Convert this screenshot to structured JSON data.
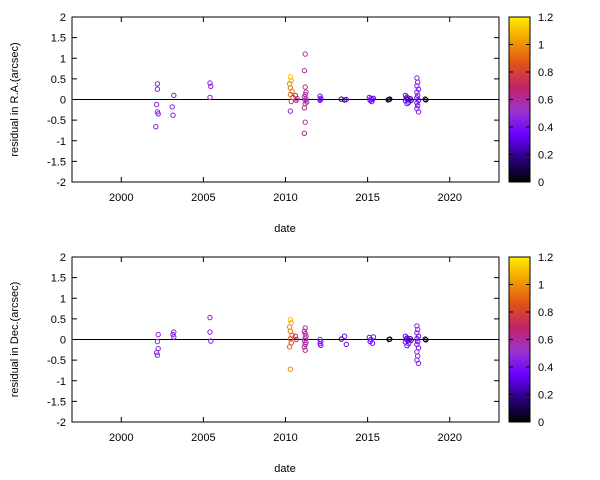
{
  "chart_data": [
    {
      "type": "scatter",
      "title": "",
      "xlabel": "date",
      "ylabel": "residual in R.A.(arcsec)",
      "xlim": [
        1997,
        2023
      ],
      "ylim": [
        -2,
        2
      ],
      "x_ticks": [
        "2000",
        "2005",
        "2010",
        "2015",
        "2020"
      ],
      "y_ticks": [
        "2",
        "1.5",
        "1",
        "0.5",
        "0",
        "-0.5",
        "-1",
        "-1.5",
        "-2"
      ],
      "color_by": "third value, 0 to 1.2",
      "zero_line": true,
      "points": [
        {
          "date": 2002.2,
          "residual": 0.38,
          "c": 0.45
        },
        {
          "date": 2002.2,
          "residual": 0.25,
          "c": 0.45
        },
        {
          "date": 2002.15,
          "residual": -0.12,
          "c": 0.45
        },
        {
          "date": 2002.2,
          "residual": -0.3,
          "c": 0.45
        },
        {
          "date": 2002.25,
          "residual": -0.35,
          "c": 0.45
        },
        {
          "date": 2002.1,
          "residual": -0.66,
          "c": 0.45
        },
        {
          "date": 2003.2,
          "residual": 0.1,
          "c": 0.45
        },
        {
          "date": 2003.1,
          "residual": -0.18,
          "c": 0.45
        },
        {
          "date": 2003.15,
          "residual": -0.38,
          "c": 0.45
        },
        {
          "date": 2005.4,
          "residual": 0.4,
          "c": 0.45
        },
        {
          "date": 2005.45,
          "residual": 0.32,
          "c": 0.45
        },
        {
          "date": 2005.4,
          "residual": 0.05,
          "c": 0.45
        },
        {
          "date": 2010.3,
          "residual": 0.55,
          "c": 1.1
        },
        {
          "date": 2010.35,
          "residual": 0.45,
          "c": 1.05
        },
        {
          "date": 2010.25,
          "residual": 0.38,
          "c": 1.0
        },
        {
          "date": 2010.3,
          "residual": 0.28,
          "c": 0.95
        },
        {
          "date": 2010.4,
          "residual": 0.2,
          "c": 1.0
        },
        {
          "date": 2010.3,
          "residual": 0.12,
          "c": 0.9
        },
        {
          "date": 2010.45,
          "residual": 0.05,
          "c": 0.85
        },
        {
          "date": 2010.35,
          "residual": -0.05,
          "c": 0.8
        },
        {
          "date": 2010.3,
          "residual": -0.28,
          "c": 0.45
        },
        {
          "date": 2010.6,
          "residual": 0.1,
          "c": 0.7
        },
        {
          "date": 2010.7,
          "residual": 0.02,
          "c": 0.65
        },
        {
          "date": 2010.65,
          "residual": -0.02,
          "c": 0.6
        },
        {
          "date": 2011.2,
          "residual": 1.1,
          "c": 0.6
        },
        {
          "date": 2011.15,
          "residual": 0.7,
          "c": 0.6
        },
        {
          "date": 2011.2,
          "residual": 0.3,
          "c": 0.6
        },
        {
          "date": 2011.25,
          "residual": 0.18,
          "c": 0.6
        },
        {
          "date": 2011.2,
          "residual": 0.12,
          "c": 0.58
        },
        {
          "date": 2011.15,
          "residual": 0.06,
          "c": 0.58
        },
        {
          "date": 2011.25,
          "residual": 0.02,
          "c": 0.58
        },
        {
          "date": 2011.2,
          "residual": -0.02,
          "c": 0.58
        },
        {
          "date": 2011.3,
          "residual": -0.06,
          "c": 0.58
        },
        {
          "date": 2011.2,
          "residual": -0.1,
          "c": 0.58
        },
        {
          "date": 2011.15,
          "residual": -0.2,
          "c": 0.6
        },
        {
          "date": 2011.2,
          "residual": -0.55,
          "c": 0.6
        },
        {
          "date": 2011.15,
          "residual": -0.82,
          "c": 0.6
        },
        {
          "date": 2012.1,
          "residual": 0.08,
          "c": 0.4
        },
        {
          "date": 2012.15,
          "residual": 0.03,
          "c": 0.4
        },
        {
          "date": 2012.1,
          "residual": -0.02,
          "c": 0.4
        },
        {
          "date": 2012.15,
          "residual": 0.0,
          "c": 0.4
        },
        {
          "date": 2013.4,
          "residual": 0.01,
          "c": 0.1
        },
        {
          "date": 2013.6,
          "residual": -0.01,
          "c": 0.1
        },
        {
          "date": 2013.7,
          "residual": 0.0,
          "c": 0.35
        },
        {
          "date": 2015.1,
          "residual": 0.05,
          "c": 0.35
        },
        {
          "date": 2015.2,
          "residual": 0.02,
          "c": 0.35
        },
        {
          "date": 2015.15,
          "residual": -0.02,
          "c": 0.35
        },
        {
          "date": 2015.3,
          "residual": 0.0,
          "c": 0.35
        },
        {
          "date": 2015.25,
          "residual": -0.05,
          "c": 0.35
        },
        {
          "date": 2015.35,
          "residual": 0.03,
          "c": 0.35
        },
        {
          "date": 2016.3,
          "residual": 0.0,
          "c": 0.05
        },
        {
          "date": 2016.35,
          "residual": 0.01,
          "c": 0.05
        },
        {
          "date": 2016.25,
          "residual": -0.01,
          "c": 0.05
        },
        {
          "date": 2017.3,
          "residual": 0.1,
          "c": 0.35
        },
        {
          "date": 2017.4,
          "residual": 0.06,
          "c": 0.35
        },
        {
          "date": 2017.35,
          "residual": 0.03,
          "c": 0.3
        },
        {
          "date": 2017.45,
          "residual": 0.0,
          "c": 0.3
        },
        {
          "date": 2017.3,
          "residual": -0.03,
          "c": 0.3
        },
        {
          "date": 2017.5,
          "residual": -0.07,
          "c": 0.35
        },
        {
          "date": 2017.4,
          "residual": -0.1,
          "c": 0.35
        },
        {
          "date": 2017.6,
          "residual": 0.02,
          "c": 0.2
        },
        {
          "date": 2017.65,
          "residual": -0.02,
          "c": 0.2
        },
        {
          "date": 2018.0,
          "residual": 0.52,
          "c": 0.45
        },
        {
          "date": 2018.05,
          "residual": 0.42,
          "c": 0.45
        },
        {
          "date": 2018.0,
          "residual": 0.33,
          "c": 0.45
        },
        {
          "date": 2018.1,
          "residual": 0.25,
          "c": 0.4
        },
        {
          "date": 2018.0,
          "residual": 0.18,
          "c": 0.4
        },
        {
          "date": 2018.05,
          "residual": 0.1,
          "c": 0.4
        },
        {
          "date": 2018.0,
          "residual": 0.04,
          "c": 0.35
        },
        {
          "date": 2018.1,
          "residual": -0.02,
          "c": 0.35
        },
        {
          "date": 2018.0,
          "residual": -0.08,
          "c": 0.35
        },
        {
          "date": 2018.05,
          "residual": -0.15,
          "c": 0.4
        },
        {
          "date": 2018.0,
          "residual": -0.22,
          "c": 0.4
        },
        {
          "date": 2018.1,
          "residual": -0.3,
          "c": 0.45
        },
        {
          "date": 2018.5,
          "residual": 0.01,
          "c": 0.05
        },
        {
          "date": 2018.55,
          "residual": -0.01,
          "c": 0.05
        }
      ]
    },
    {
      "type": "scatter",
      "title": "",
      "xlabel": "date",
      "ylabel": "residual in Dec.(arcsec)",
      "xlim": [
        1997,
        2023
      ],
      "ylim": [
        -2,
        2
      ],
      "x_ticks": [
        "2000",
        "2005",
        "2010",
        "2015",
        "2020"
      ],
      "y_ticks": [
        "2",
        "1.5",
        "1",
        "0.5",
        "0",
        "-0.5",
        "-1",
        "-1.5",
        "-2"
      ],
      "color_by": "third value, 0 to 1.2",
      "zero_line": true,
      "points": [
        {
          "date": 2002.25,
          "residual": 0.12,
          "c": 0.45
        },
        {
          "date": 2002.2,
          "residual": -0.05,
          "c": 0.45
        },
        {
          "date": 2002.25,
          "residual": -0.22,
          "c": 0.45
        },
        {
          "date": 2002.15,
          "residual": -0.32,
          "c": 0.45
        },
        {
          "date": 2002.2,
          "residual": -0.38,
          "c": 0.45
        },
        {
          "date": 2003.2,
          "residual": 0.18,
          "c": 0.45
        },
        {
          "date": 2003.15,
          "residual": 0.12,
          "c": 0.45
        },
        {
          "date": 2003.2,
          "residual": 0.06,
          "c": 0.45
        },
        {
          "date": 2005.4,
          "residual": 0.53,
          "c": 0.45
        },
        {
          "date": 2005.4,
          "residual": 0.18,
          "c": 0.45
        },
        {
          "date": 2005.45,
          "residual": -0.04,
          "c": 0.45
        },
        {
          "date": 2010.3,
          "residual": 0.48,
          "c": 1.1
        },
        {
          "date": 2010.35,
          "residual": 0.4,
          "c": 1.05
        },
        {
          "date": 2010.25,
          "residual": 0.3,
          "c": 1.0
        },
        {
          "date": 2010.3,
          "residual": 0.2,
          "c": 0.95
        },
        {
          "date": 2010.4,
          "residual": 0.1,
          "c": 0.9
        },
        {
          "date": 2010.3,
          "residual": 0.02,
          "c": 0.85
        },
        {
          "date": 2010.35,
          "residual": -0.08,
          "c": 0.85
        },
        {
          "date": 2010.25,
          "residual": -0.18,
          "c": 0.9
        },
        {
          "date": 2010.3,
          "residual": -0.72,
          "c": 1.0
        },
        {
          "date": 2010.6,
          "residual": 0.08,
          "c": 0.7
        },
        {
          "date": 2010.65,
          "residual": 0.0,
          "c": 0.65
        },
        {
          "date": 2011.2,
          "residual": 0.28,
          "c": 0.6
        },
        {
          "date": 2011.15,
          "residual": 0.2,
          "c": 0.6
        },
        {
          "date": 2011.2,
          "residual": 0.14,
          "c": 0.58
        },
        {
          "date": 2011.25,
          "residual": 0.08,
          "c": 0.58
        },
        {
          "date": 2011.2,
          "residual": 0.03,
          "c": 0.58
        },
        {
          "date": 2011.15,
          "residual": -0.02,
          "c": 0.58
        },
        {
          "date": 2011.25,
          "residual": -0.07,
          "c": 0.58
        },
        {
          "date": 2011.2,
          "residual": -0.12,
          "c": 0.6
        },
        {
          "date": 2011.15,
          "residual": -0.18,
          "c": 0.6
        },
        {
          "date": 2011.2,
          "residual": -0.26,
          "c": 0.6
        },
        {
          "date": 2012.1,
          "residual": 0.0,
          "c": 0.4
        },
        {
          "date": 2012.15,
          "residual": -0.05,
          "c": 0.4
        },
        {
          "date": 2012.1,
          "residual": -0.1,
          "c": 0.4
        },
        {
          "date": 2012.15,
          "residual": -0.14,
          "c": 0.4
        },
        {
          "date": 2013.4,
          "residual": 0.01,
          "c": 0.1
        },
        {
          "date": 2013.6,
          "residual": 0.08,
          "c": 0.35
        },
        {
          "date": 2013.7,
          "residual": -0.12,
          "c": 0.35
        },
        {
          "date": 2015.1,
          "residual": 0.05,
          "c": 0.35
        },
        {
          "date": 2015.2,
          "residual": 0.0,
          "c": 0.35
        },
        {
          "date": 2015.15,
          "residual": -0.05,
          "c": 0.35
        },
        {
          "date": 2015.3,
          "residual": -0.09,
          "c": 0.35
        },
        {
          "date": 2015.35,
          "residual": 0.06,
          "c": 0.35
        },
        {
          "date": 2016.3,
          "residual": 0.0,
          "c": 0.05
        },
        {
          "date": 2016.35,
          "residual": 0.01,
          "c": 0.05
        },
        {
          "date": 2017.3,
          "residual": 0.08,
          "c": 0.35
        },
        {
          "date": 2017.4,
          "residual": 0.04,
          "c": 0.3
        },
        {
          "date": 2017.35,
          "residual": 0.01,
          "c": 0.3
        },
        {
          "date": 2017.45,
          "residual": -0.03,
          "c": 0.3
        },
        {
          "date": 2017.3,
          "residual": -0.06,
          "c": 0.35
        },
        {
          "date": 2017.5,
          "residual": -0.1,
          "c": 0.35
        },
        {
          "date": 2017.4,
          "residual": -0.15,
          "c": 0.35
        },
        {
          "date": 2017.6,
          "residual": 0.02,
          "c": 0.2
        },
        {
          "date": 2017.65,
          "residual": -0.02,
          "c": 0.2
        },
        {
          "date": 2018.0,
          "residual": 0.33,
          "c": 0.45
        },
        {
          "date": 2018.05,
          "residual": 0.24,
          "c": 0.45
        },
        {
          "date": 2018.0,
          "residual": 0.16,
          "c": 0.4
        },
        {
          "date": 2018.1,
          "residual": 0.08,
          "c": 0.4
        },
        {
          "date": 2018.0,
          "residual": 0.02,
          "c": 0.35
        },
        {
          "date": 2018.05,
          "residual": -0.05,
          "c": 0.35
        },
        {
          "date": 2018.0,
          "residual": -0.12,
          "c": 0.4
        },
        {
          "date": 2018.1,
          "residual": -0.2,
          "c": 0.4
        },
        {
          "date": 2018.0,
          "residual": -0.3,
          "c": 0.45
        },
        {
          "date": 2018.05,
          "residual": -0.4,
          "c": 0.45
        },
        {
          "date": 2018.0,
          "residual": -0.5,
          "c": 0.45
        },
        {
          "date": 2018.1,
          "residual": -0.58,
          "c": 0.45
        },
        {
          "date": 2018.5,
          "residual": 0.01,
          "c": 0.05
        },
        {
          "date": 2018.55,
          "residual": -0.01,
          "c": 0.05
        }
      ]
    }
  ],
  "colorbar": {
    "range": [
      0,
      1.2
    ],
    "ticks": [
      "1.2",
      "1",
      "0.8",
      "0.6",
      "0.4",
      "0.2",
      "0"
    ],
    "palette": [
      "#000000",
      "#2a0080",
      "#6a00ff",
      "#9b33cc",
      "#c0226a",
      "#e0501a",
      "#f39c00",
      "#ffee00"
    ]
  }
}
